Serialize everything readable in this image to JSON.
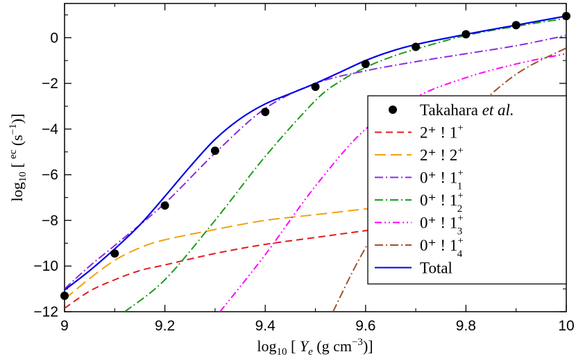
{
  "chart_data": {
    "type": "line",
    "xlabel": "log10 [ Y_e (g cm^-3)]",
    "ylabel": "log10 [ ec (s^-1)]",
    "xlim": [
      9.0,
      10.0
    ],
    "ylim": [
      -12,
      1.5
    ],
    "x_ticks": [
      9.0,
      9.2,
      9.4,
      9.6,
      9.8,
      10.0
    ],
    "x_tick_labels": [
      "9",
      "9.2",
      "9.4",
      "9.6",
      "9.8",
      "10"
    ],
    "y_ticks": [
      -12,
      -10,
      -8,
      -6,
      -4,
      -2,
      0
    ],
    "y_tick_labels": [
      "−12",
      "−10",
      "−8",
      "−6",
      "−4",
      "−2",
      "0"
    ],
    "grid": false,
    "legend_position": "right",
    "points": {
      "name": "Takahara et al.",
      "color": "#000000",
      "x": [
        9.0,
        9.1,
        9.2,
        9.3,
        9.4,
        9.5,
        9.6,
        9.7,
        9.8,
        9.9,
        10.0
      ],
      "y": [
        -11.3,
        -9.45,
        -7.35,
        -4.95,
        -3.25,
        -2.15,
        -1.15,
        -0.4,
        0.15,
        0.55,
        0.95
      ]
    },
    "series": [
      {
        "name": "2+ ! 1+",
        "color": "#e41a1c",
        "dash": "10,6",
        "x": [
          9.0,
          9.05,
          9.1,
          9.15,
          9.2,
          9.3,
          9.4,
          9.5,
          9.6,
          9.7,
          9.8,
          9.9,
          10.0
        ],
        "y": [
          -11.85,
          -11.1,
          -10.6,
          -10.2,
          -9.95,
          -9.45,
          -9.05,
          -8.75,
          -8.45,
          -8.15,
          -7.85,
          -7.45,
          -7.0
        ]
      },
      {
        "name": "2+ ! 2+",
        "color": "#f0a30a",
        "dash": "16,7",
        "x": [
          9.0,
          9.05,
          9.1,
          9.15,
          9.2,
          9.3,
          9.4,
          9.5,
          9.6,
          9.7,
          9.8,
          9.9,
          10.0
        ],
        "y": [
          -11.45,
          -10.55,
          -9.75,
          -9.2,
          -8.85,
          -8.4,
          -8.0,
          -7.75,
          -7.5,
          -7.3,
          -7.05,
          -6.7,
          -6.3
        ]
      },
      {
        "name": "0+ ! 1+1",
        "color": "#8a2be2",
        "dash": "12,4,2,4",
        "x": [
          9.0,
          9.05,
          9.1,
          9.2,
          9.3,
          9.4,
          9.5,
          9.6,
          9.7,
          9.8,
          9.9,
          10.0
        ],
        "y": [
          -11.0,
          -10.0,
          -9.1,
          -7.25,
          -5.05,
          -3.1,
          -2.0,
          -1.45,
          -1.05,
          -0.7,
          -0.35,
          0.1
        ]
      },
      {
        "name": "0+ ! 1+2",
        "color": "#1a9c1a",
        "dash": "12,4,2,4",
        "x": [
          9.12,
          9.2,
          9.3,
          9.4,
          9.5,
          9.55,
          9.6,
          9.65,
          9.7,
          9.8,
          9.9,
          10.0
        ],
        "y": [
          -12.0,
          -10.6,
          -8.0,
          -5.2,
          -2.75,
          -1.9,
          -1.3,
          -0.85,
          -0.5,
          0.1,
          0.5,
          0.85
        ]
      },
      {
        "name": "0+ ! 1+3",
        "color": "#ff00ff",
        "dash": "10,4,2,4,2,4",
        "x": [
          9.31,
          9.4,
          9.5,
          9.6,
          9.7,
          9.8,
          9.9,
          10.0
        ],
        "y": [
          -12.0,
          -9.5,
          -6.5,
          -4.0,
          -2.6,
          -1.75,
          -1.15,
          -0.7
        ]
      },
      {
        "name": "0+ ! 1+4",
        "color": "#a0522d",
        "dash": "12,4,2,4",
        "x": [
          9.535,
          9.6,
          9.7,
          9.8,
          9.9,
          10.0
        ],
        "y": [
          -12.0,
          -9.2,
          -5.8,
          -3.5,
          -1.6,
          -0.45
        ]
      },
      {
        "name": "Total",
        "color": "#0000e6",
        "dash": "",
        "x": [
          9.0,
          9.05,
          9.1,
          9.15,
          9.2,
          9.25,
          9.3,
          9.35,
          9.4,
          9.45,
          9.5,
          9.55,
          9.6,
          9.65,
          9.7,
          9.8,
          9.9,
          10.0
        ],
        "y": [
          -11.05,
          -10.2,
          -9.25,
          -8.2,
          -6.95,
          -5.65,
          -4.45,
          -3.55,
          -2.9,
          -2.45,
          -2.0,
          -1.5,
          -1.0,
          -0.6,
          -0.3,
          0.15,
          0.55,
          0.95
        ]
      }
    ],
    "legend": [
      {
        "marker": "circle",
        "color": "#000000",
        "dash": "",
        "prefix": "Takahara ",
        "emph": "et al.",
        "sup": "",
        "sub": ""
      },
      {
        "marker": "line",
        "color": "#e41a1c",
        "dash": "10,6",
        "prefix": "2⁺ !  1",
        "emph": "",
        "sup": "+",
        "sub": ""
      },
      {
        "marker": "line",
        "color": "#f0a30a",
        "dash": "16,7",
        "prefix": "2⁺ !  2",
        "emph": "",
        "sup": "+",
        "sub": ""
      },
      {
        "marker": "line",
        "color": "#8a2be2",
        "dash": "12,4,2,4",
        "prefix": "0⁺ !  1",
        "emph": "",
        "sup": "+",
        "sub": "1"
      },
      {
        "marker": "line",
        "color": "#1a9c1a",
        "dash": "12,4,2,4",
        "prefix": "0⁺ !  1",
        "emph": "",
        "sup": "+",
        "sub": "2"
      },
      {
        "marker": "line",
        "color": "#ff00ff",
        "dash": "10,4,2,4,2,4",
        "prefix": "0⁺ !  1",
        "emph": "",
        "sup": "+",
        "sub": "3"
      },
      {
        "marker": "line",
        "color": "#a0522d",
        "dash": "12,4,2,4",
        "prefix": "0⁺ !  1",
        "emph": "",
        "sup": "+",
        "sub": "4"
      },
      {
        "marker": "line",
        "color": "#0000e6",
        "dash": "",
        "prefix": "Total",
        "emph": "",
        "sup": "",
        "sub": ""
      }
    ]
  }
}
